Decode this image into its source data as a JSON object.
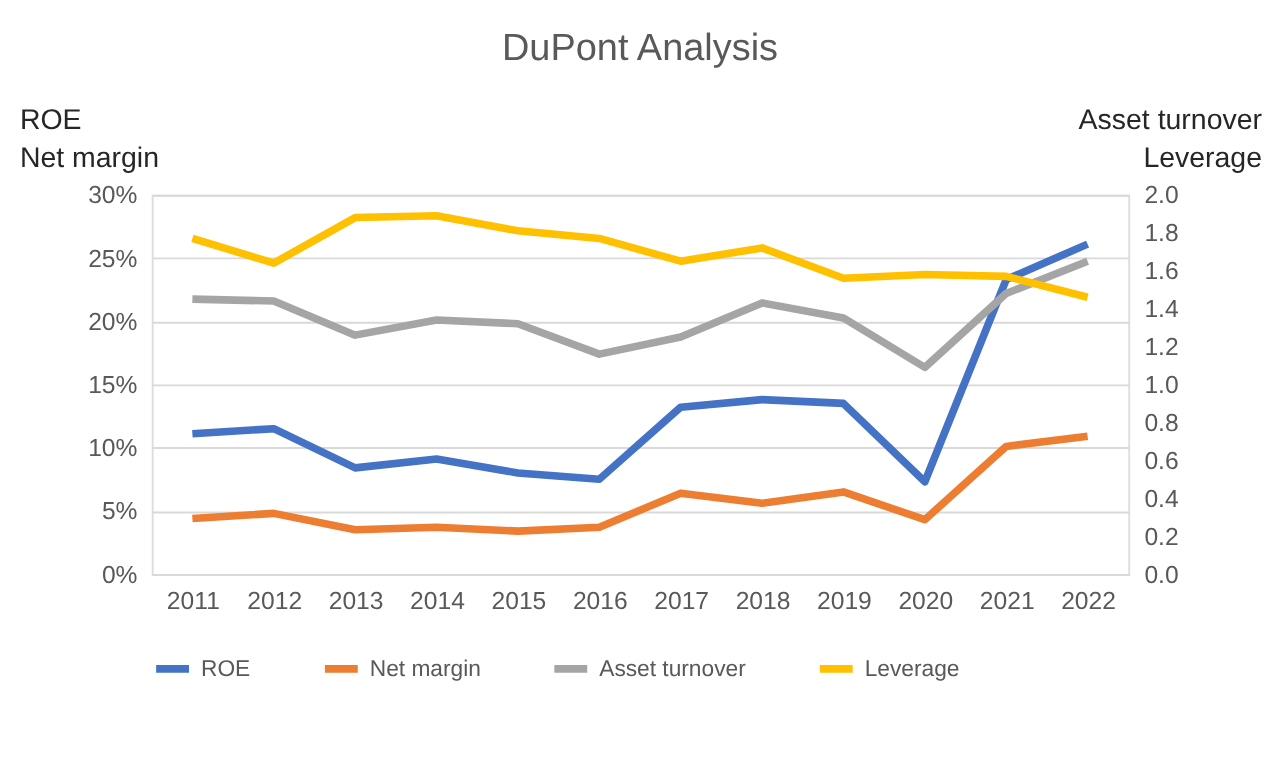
{
  "chart_data": {
    "type": "line",
    "title": "DuPont Analysis",
    "ylabel": "ROE\nNet margin",
    "y2label": "Asset turnover\nLeverage",
    "categories": [
      "2011",
      "2012",
      "2013",
      "2014",
      "2015",
      "2016",
      "2017",
      "2018",
      "2019",
      "2020",
      "2021",
      "2022"
    ],
    "series": [
      {
        "name": "ROE",
        "color": "#4472c4",
        "values": [
          11.1,
          11.5,
          8.4,
          9.1,
          8.0,
          7.5,
          13.2,
          13.8,
          13.5,
          7.3,
          23.3,
          26.1
        ]
      },
      {
        "name": "Net margin",
        "color": "#ed7d31",
        "values": [
          4.4,
          4.8,
          3.5,
          3.7,
          3.4,
          3.7,
          6.4,
          5.6,
          6.5,
          4.3,
          10.1,
          10.9
        ]
      },
      {
        "name": "Asset turnover",
        "color": "#a5a5a5",
        "axis": "y2",
        "values": [
          1.45,
          1.44,
          1.26,
          1.34,
          1.32,
          1.16,
          1.25,
          1.43,
          1.35,
          1.09,
          1.48,
          1.65
        ]
      },
      {
        "name": "Leverage",
        "color": "#ffc000",
        "axis": "y2",
        "values": [
          1.77,
          1.64,
          1.88,
          1.89,
          1.81,
          1.77,
          1.65,
          1.72,
          1.56,
          1.58,
          1.57,
          1.46
        ]
      }
    ],
    "ylim": [
      0,
      30
    ],
    "yticks": [
      {
        "value": 0,
        "label": "0%"
      },
      {
        "value": 5,
        "label": "5%"
      },
      {
        "value": 10,
        "label": "10%"
      },
      {
        "value": 15,
        "label": "15%"
      },
      {
        "value": 20,
        "label": "20%"
      },
      {
        "value": 25,
        "label": "25%"
      },
      {
        "value": 30,
        "label": "30%"
      }
    ],
    "y2lim": [
      0,
      2
    ],
    "y2ticks": [
      {
        "value": 0,
        "label": "0.0"
      },
      {
        "value": 0.2,
        "label": "0.2"
      },
      {
        "value": 0.4,
        "label": "0.4"
      },
      {
        "value": 0.6,
        "label": "0.6"
      },
      {
        "value": 0.8,
        "label": "0.8"
      },
      {
        "value": 1,
        "label": "1.0"
      },
      {
        "value": 1.2,
        "label": "1.2"
      },
      {
        "value": 1.4,
        "label": "1.4"
      },
      {
        "value": 1.6,
        "label": "1.6"
      },
      {
        "value": 1.8,
        "label": "1.8"
      },
      {
        "value": 2,
        "label": "2.0"
      }
    ],
    "grid": "y",
    "legend": "bottom",
    "marker": "none",
    "line_style": "solid"
  }
}
